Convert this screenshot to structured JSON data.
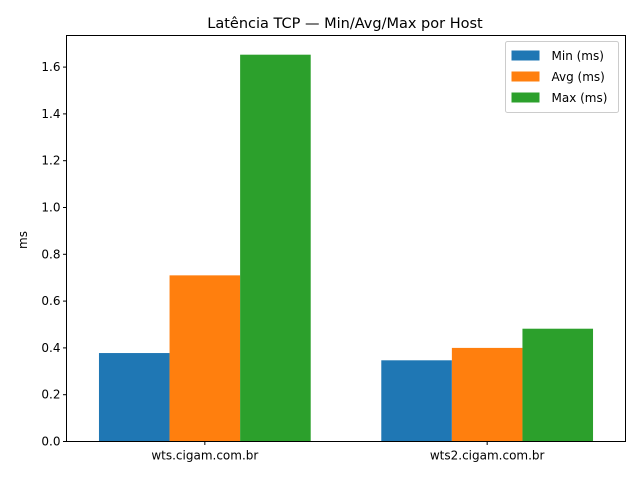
{
  "chart_data": {
    "type": "bar",
    "title": "Latência TCP — Min/Avg/Max por Host",
    "xlabel": "",
    "ylabel": "ms",
    "categories": [
      "wts.cigam.com.br",
      "wts2.cigam.com.br"
    ],
    "series": [
      {
        "name": "Min (ms)",
        "color": "#1f77b4",
        "values": [
          0.378,
          0.347
        ]
      },
      {
        "name": "Avg (ms)",
        "color": "#ff7f0e",
        "values": [
          0.71,
          0.4
        ]
      },
      {
        "name": "Max (ms)",
        "color": "#2ca02c",
        "values": [
          1.653,
          0.482
        ]
      }
    ],
    "ylim": [
      0,
      1.735
    ],
    "yticks": [
      "0.0",
      "0.2",
      "0.4",
      "0.6",
      "0.8",
      "1.0",
      "1.2",
      "1.4",
      "1.6"
    ],
    "grid": false,
    "legend_position": "top-right"
  }
}
